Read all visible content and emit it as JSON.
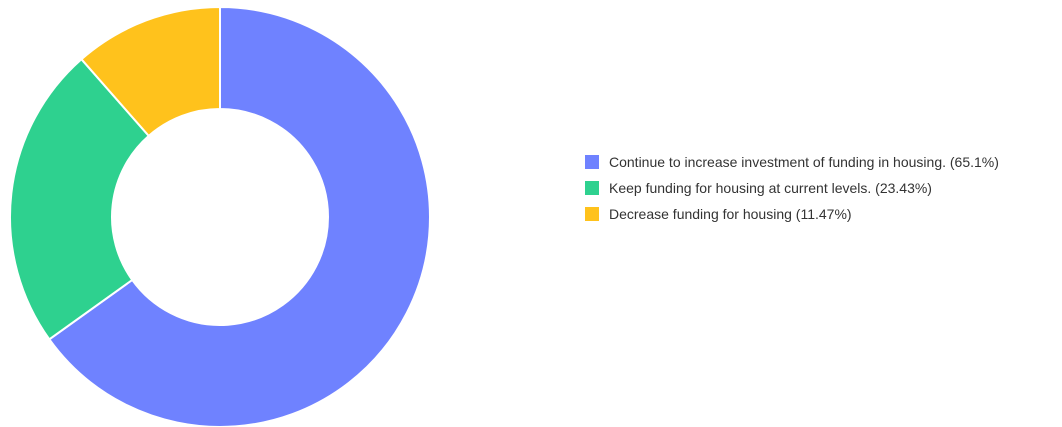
{
  "chart_data": {
    "type": "pie",
    "donut": true,
    "title": "",
    "legend_position": "right",
    "slices": [
      {
        "label": "Continue to increase investment of funding in housing. (65.1%)",
        "value": 65.1,
        "color": "#6f82ff"
      },
      {
        "label": "Keep funding for housing at current levels. (23.43%)",
        "value": 23.43,
        "color": "#2ed18f"
      },
      {
        "label": "Decrease funding for housing (11.47%)",
        "value": 11.47,
        "color": "#ffc21c"
      }
    ]
  }
}
